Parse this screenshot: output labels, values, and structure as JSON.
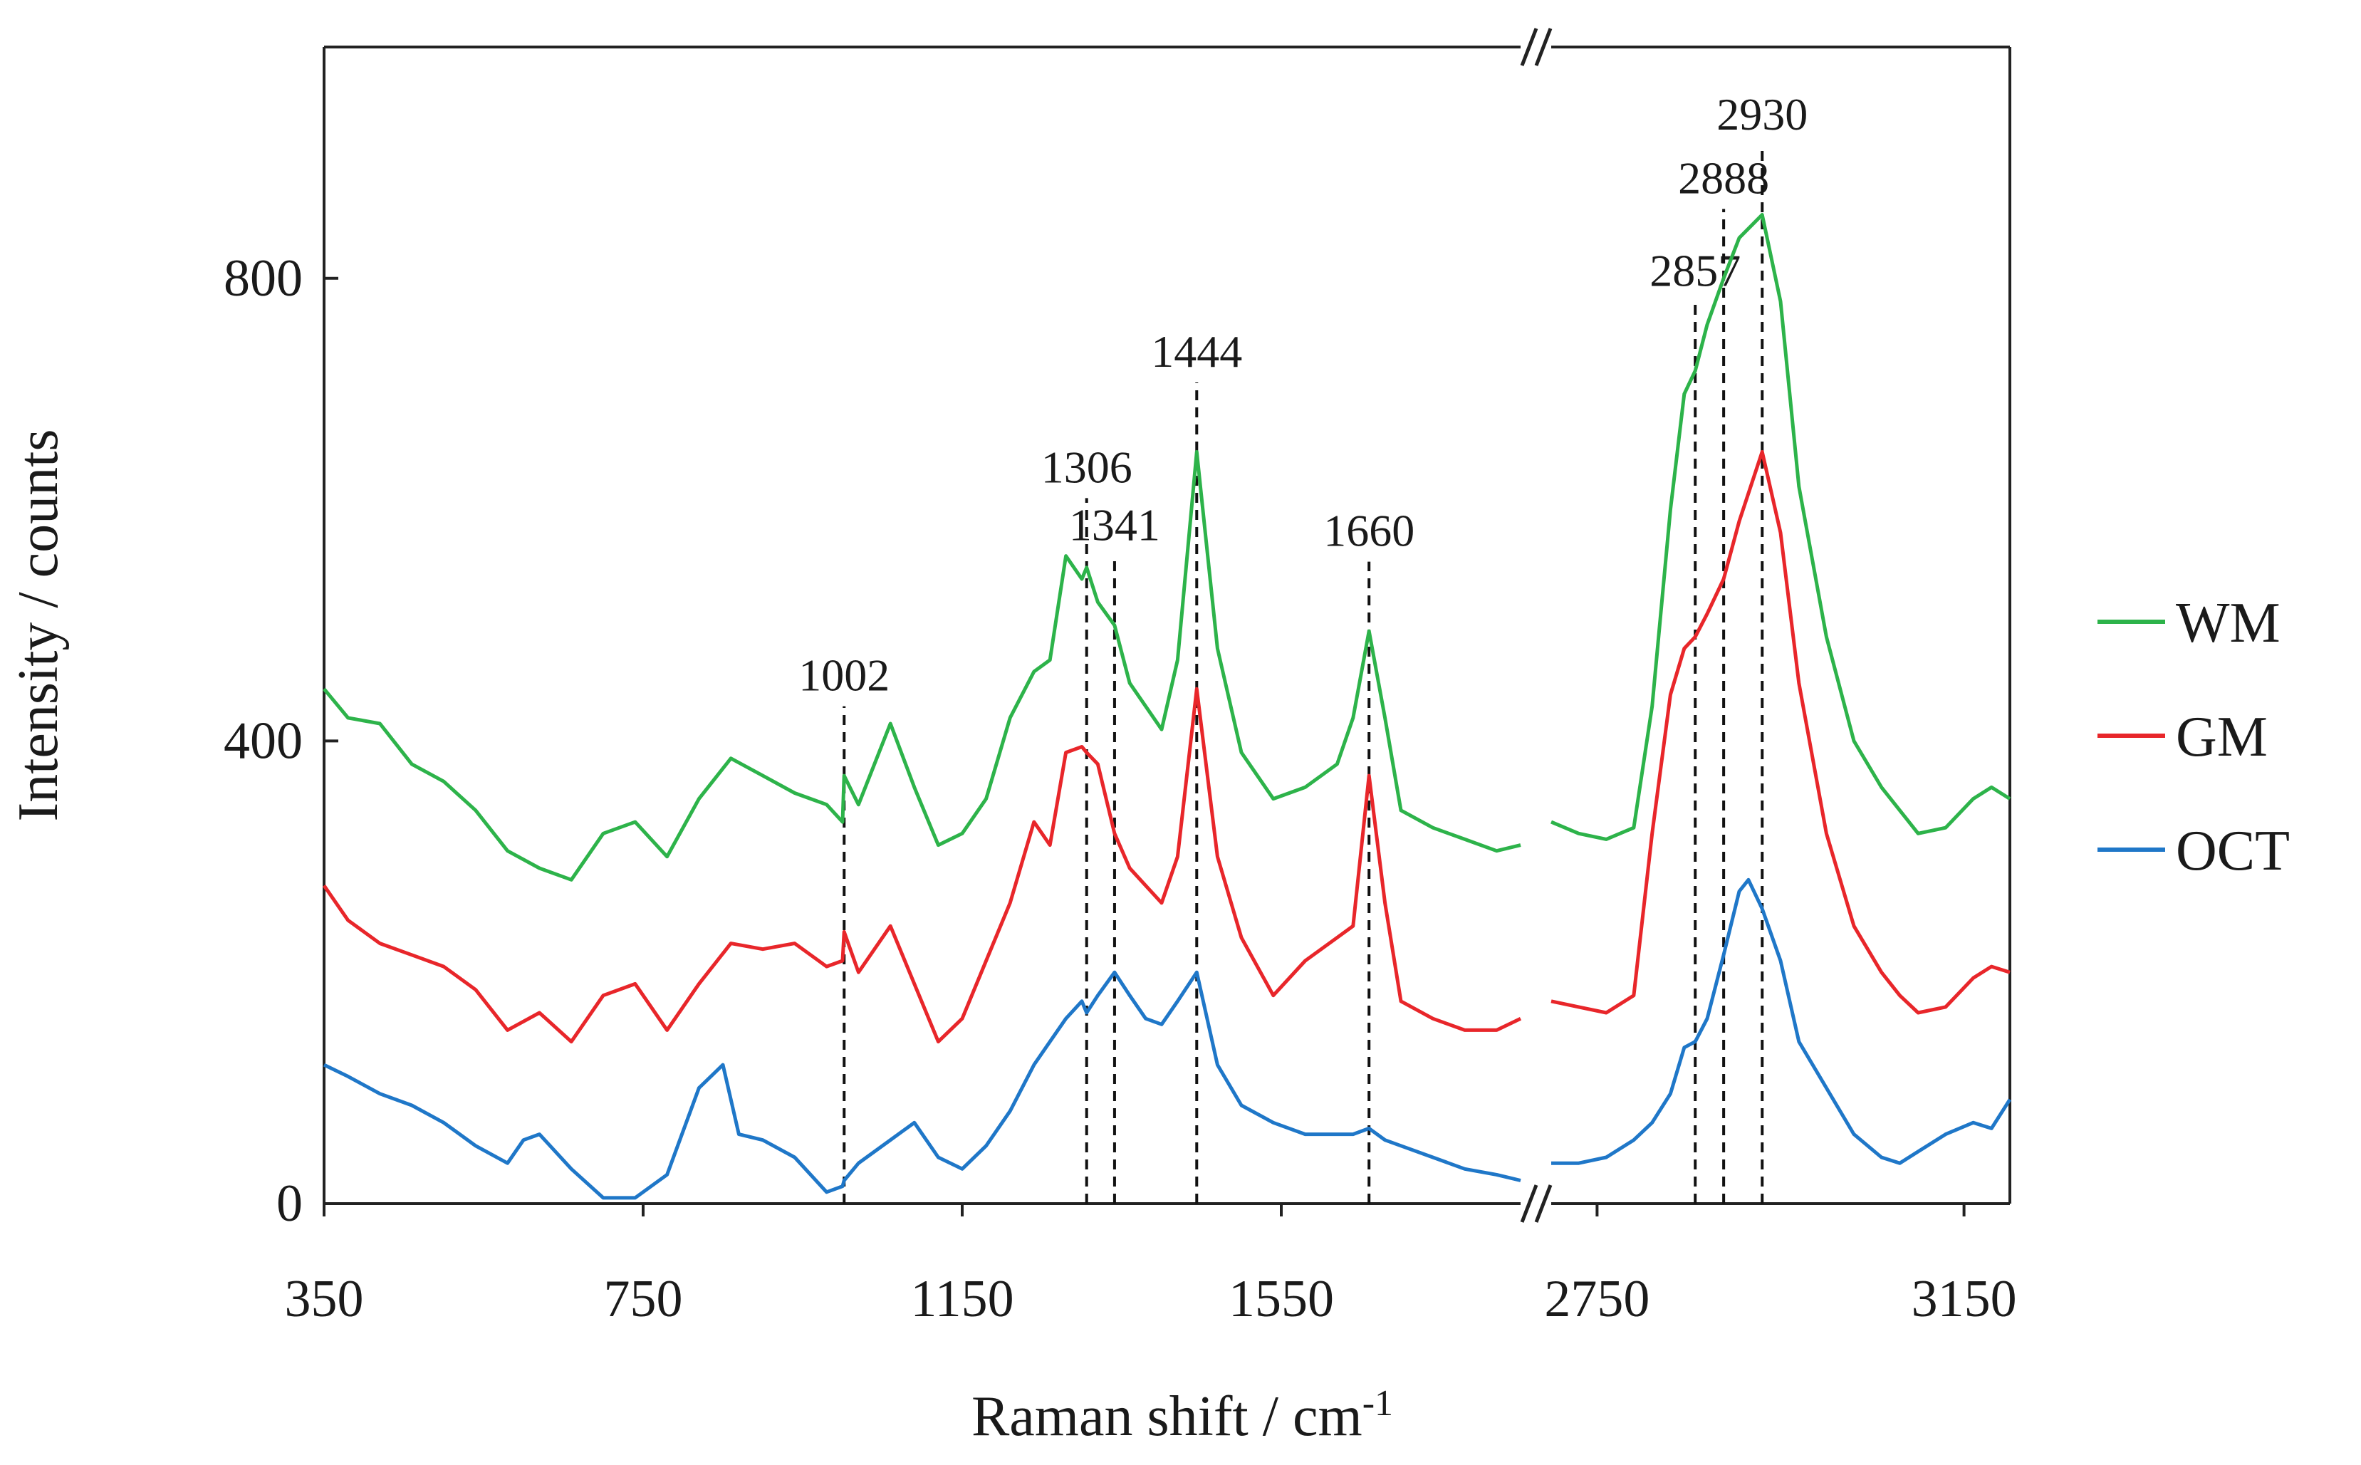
{
  "chart_data": {
    "type": "line",
    "title": "",
    "xlabel": "Raman shift / cm",
    "xlabel_sup": "-1",
    "ylabel": "Intensity / counts",
    "ylim": [
      0,
      1000
    ],
    "yticks": [
      0,
      400,
      800
    ],
    "ytick_labels": [
      "0",
      "400",
      "800"
    ],
    "x_segments": [
      {
        "range": [
          350,
          1850
        ],
        "ticks": [
          350,
          750,
          1150,
          1550
        ],
        "tick_labels": [
          "350",
          "750",
          "1150",
          "1550"
        ]
      },
      {
        "range": [
          2700,
          3200
        ],
        "ticks": [
          2750,
          3150
        ],
        "tick_labels": [
          "2750",
          "3150"
        ]
      }
    ],
    "axis_break": "//",
    "legend_position": "right",
    "series": [
      {
        "name": "WM",
        "color": "#2DB34A",
        "segments": [
          {
            "x": [
              350,
              380,
              420,
              460,
              500,
              540,
              580,
              620,
              660,
              700,
              740,
              780,
              820,
              860,
              900,
              940,
              980,
              1000,
              1002,
              1020,
              1060,
              1090,
              1120,
              1150,
              1180,
              1210,
              1240,
              1260,
              1280,
              1300,
              1306,
              1320,
              1341,
              1360,
              1380,
              1400,
              1420,
              1444,
              1470,
              1500,
              1540,
              1580,
              1620,
              1640,
              1660,
              1680,
              1700,
              1740,
              1780,
              1820,
              1850
            ],
            "y": [
              445,
              420,
              415,
              380,
              365,
              340,
              305,
              290,
              280,
              320,
              330,
              300,
              350,
              385,
              370,
              355,
              345,
              330,
              370,
              345,
              415,
              360,
              310,
              320,
              350,
              420,
              460,
              470,
              560,
              540,
              550,
              520,
              500,
              450,
              430,
              410,
              470,
              650,
              480,
              390,
              350,
              360,
              380,
              420,
              495,
              420,
              340,
              325,
              315,
              305,
              310
            ]
          },
          {
            "x": [
              2700,
              2730,
              2760,
              2790,
              2810,
              2830,
              2845,
              2857,
              2870,
              2888,
              2905,
              2930,
              2950,
              2970,
              3000,
              3030,
              3060,
              3080,
              3100,
              3130,
              3160,
              3180,
              3200
            ],
            "y": [
              330,
              320,
              315,
              325,
              430,
              600,
              700,
              720,
              760,
              800,
              835,
              855,
              780,
              620,
              490,
              400,
              360,
              340,
              320,
              325,
              350,
              360,
              350
            ]
          }
        ]
      },
      {
        "name": "GM",
        "color": "#E8262A",
        "segments": [
          {
            "x": [
              350,
              380,
              420,
              460,
              500,
              540,
              580,
              620,
              660,
              700,
              740,
              780,
              820,
              860,
              900,
              940,
              980,
              1000,
              1002,
              1020,
              1060,
              1090,
              1120,
              1150,
              1180,
              1210,
              1240,
              1260,
              1280,
              1300,
              1306,
              1320,
              1341,
              1360,
              1380,
              1400,
              1420,
              1444,
              1470,
              1500,
              1540,
              1580,
              1620,
              1640,
              1660,
              1680,
              1700,
              1740,
              1780,
              1820,
              1850
            ],
            "y": [
              275,
              245,
              225,
              215,
              205,
              185,
              150,
              165,
              140,
              180,
              190,
              150,
              190,
              225,
              220,
              225,
              205,
              210,
              235,
              200,
              240,
              190,
              140,
              160,
              210,
              260,
              330,
              310,
              390,
              395,
              390,
              380,
              320,
              290,
              275,
              260,
              300,
              445,
              300,
              230,
              180,
              210,
              230,
              240,
              370,
              260,
              175,
              160,
              150,
              150,
              160
            ]
          },
          {
            "x": [
              2700,
              2730,
              2760,
              2790,
              2810,
              2830,
              2845,
              2857,
              2870,
              2888,
              2905,
              2930,
              2950,
              2970,
              3000,
              3030,
              3060,
              3080,
              3100,
              3130,
              3160,
              3180,
              3200
            ],
            "y": [
              175,
              170,
              165,
              180,
              320,
              440,
              480,
              490,
              510,
              540,
              590,
              650,
              580,
              450,
              320,
              240,
              200,
              180,
              165,
              170,
              195,
              205,
              200
            ]
          }
        ]
      },
      {
        "name": "OCT",
        "color": "#1F77C8",
        "segments": [
          {
            "x": [
              350,
              380,
              420,
              460,
              500,
              540,
              580,
              600,
              620,
              660,
              700,
              740,
              780,
              820,
              850,
              870,
              900,
              940,
              980,
              1000,
              1002,
              1020,
              1060,
              1090,
              1120,
              1150,
              1180,
              1210,
              1240,
              1260,
              1280,
              1300,
              1306,
              1320,
              1341,
              1360,
              1380,
              1400,
              1420,
              1444,
              1470,
              1500,
              1540,
              1580,
              1620,
              1640,
              1660,
              1680,
              1700,
              1740,
              1780,
              1820,
              1850
            ],
            "y": [
              120,
              110,
              95,
              85,
              70,
              50,
              35,
              55,
              60,
              30,
              5,
              5,
              25,
              100,
              120,
              60,
              55,
              40,
              10,
              15,
              20,
              35,
              55,
              70,
              40,
              30,
              50,
              80,
              120,
              140,
              160,
              175,
              165,
              180,
              200,
              180,
              160,
              155,
              175,
              200,
              120,
              85,
              70,
              60,
              60,
              60,
              65,
              55,
              50,
              40,
              30,
              25,
              20
            ]
          },
          {
            "x": [
              2700,
              2730,
              2760,
              2790,
              2810,
              2830,
              2845,
              2857,
              2870,
              2888,
              2905,
              2915,
              2930,
              2950,
              2970,
              3000,
              3030,
              3060,
              3080,
              3100,
              3130,
              3160,
              3180,
              3200
            ],
            "y": [
              35,
              35,
              40,
              55,
              70,
              95,
              135,
              140,
              160,
              215,
              270,
              280,
              255,
              210,
              140,
              100,
              60,
              40,
              35,
              45,
              60,
              70,
              65,
              90
            ]
          }
        ]
      }
    ],
    "annotations": [
      {
        "label": "1002",
        "x": 1002
      },
      {
        "label": "1306",
        "x": 1306
      },
      {
        "label": "1341",
        "x": 1341
      },
      {
        "label": "1444",
        "x": 1444
      },
      {
        "label": "1660",
        "x": 1660
      },
      {
        "label": "2857",
        "x": 2857
      },
      {
        "label": "2888",
        "x": 2888
      },
      {
        "label": "2930",
        "x": 2930
      }
    ]
  }
}
